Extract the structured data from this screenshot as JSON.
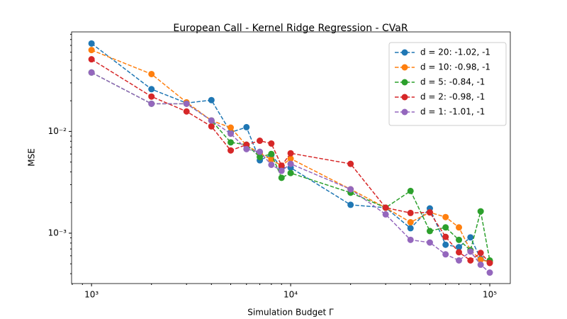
{
  "chart_data": {
    "type": "line",
    "title": "European Call - Kernel Ridge Regression - CVaR",
    "x_label": "Simulation Budget Γ",
    "y_label": "MSE",
    "xscale": "log",
    "yscale": "log",
    "xlim": [
      794,
      126800
    ],
    "ylim": [
      0.00032,
      0.095
    ],
    "xticks": [
      {
        "value": 1000,
        "label": "10³"
      },
      {
        "value": 10000,
        "label": "10⁴"
      },
      {
        "value": 100000,
        "label": "10⁵"
      }
    ],
    "yticks": [
      {
        "value": 0.001,
        "label": "10⁻³"
      },
      {
        "value": 0.01,
        "label": "10⁻²"
      }
    ],
    "xminorticks": [
      800,
      900,
      2000,
      3000,
      4000,
      5000,
      6000,
      7000,
      8000,
      9000,
      20000,
      30000,
      40000,
      50000,
      60000,
      70000,
      80000,
      90000
    ],
    "yminorticks": [
      0.0004,
      0.0005,
      0.0006,
      0.0007,
      0.0008,
      0.0009,
      0.002,
      0.003,
      0.004,
      0.005,
      0.006,
      0.007,
      0.008,
      0.009,
      0.02,
      0.03,
      0.04,
      0.05,
      0.06,
      0.07,
      0.08,
      0.09
    ],
    "legend_position": "upper right",
    "x": [
      1000,
      2000,
      3000,
      4000,
      5000,
      6000,
      7000,
      8000,
      9000,
      10000,
      20000,
      30000,
      40000,
      50000,
      60000,
      70000,
      80000,
      90000,
      100000
    ],
    "series": [
      {
        "name": "d = 20: -1.02, -1",
        "color": "#1f77b4",
        "values": [
          0.0731,
          0.026,
          0.019,
          0.0203,
          0.0098,
          0.011,
          0.0052,
          0.0059,
          0.0044,
          0.0044,
          0.0019,
          0.00178,
          0.00112,
          0.00175,
          0.00077,
          0.00073,
          0.00091,
          0.00056,
          0.00052
        ]
      },
      {
        "name": "d = 10: -0.98, -1",
        "color": "#ff7f0e",
        "values": [
          0.063,
          0.0366,
          0.0193,
          0.0128,
          0.0109,
          0.0073,
          0.0061,
          0.0053,
          0.0046,
          0.0054,
          0.0027,
          0.00178,
          0.00128,
          0.0016,
          0.00144,
          0.00114,
          0.00068,
          0.00055,
          0.00052
        ]
      },
      {
        "name": "d = 5: -0.84, -1",
        "color": "#2ca02c",
        "values": [
          0.0379,
          0.0187,
          0.0187,
          0.0128,
          0.0078,
          0.0074,
          0.0056,
          0.006,
          0.0035,
          0.0039,
          0.0025,
          0.00178,
          0.0026,
          0.00105,
          0.00114,
          0.00086,
          0.00068,
          0.00164,
          0.00054
        ]
      },
      {
        "name": "d = 2: -0.98, -1",
        "color": "#d62728",
        "values": [
          0.0511,
          0.022,
          0.0157,
          0.0112,
          0.0065,
          0.0074,
          0.0081,
          0.0076,
          0.0046,
          0.0061,
          0.0048,
          0.00178,
          0.00158,
          0.0016,
          0.00092,
          0.00065,
          0.00054,
          0.00064,
          0.00051
        ]
      },
      {
        "name": "d = 1: -1.01, -1",
        "color": "#9467bd",
        "values": [
          0.0379,
          0.0187,
          0.0187,
          0.0128,
          0.0095,
          0.0067,
          0.0063,
          0.0047,
          0.0041,
          0.0048,
          0.0027,
          0.00153,
          0.00086,
          0.00081,
          0.00062,
          0.00054,
          0.00066,
          0.00049,
          0.00041
        ]
      }
    ]
  }
}
